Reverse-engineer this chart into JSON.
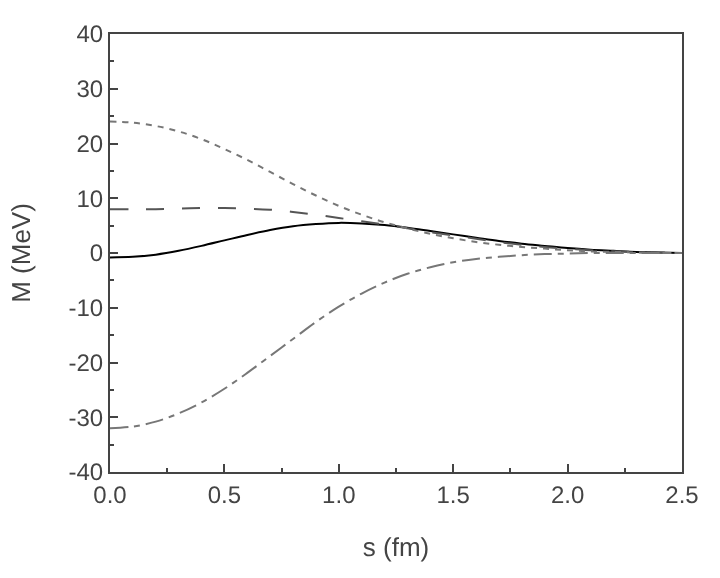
{
  "chart_data": {
    "type": "line",
    "xlabel": "s (fm)",
    "ylabel": "M (MeV)",
    "xlim": [
      0,
      2.5
    ],
    "ylim": [
      -40,
      40
    ],
    "xticks": [
      {
        "value": 0,
        "label": "0.0"
      },
      {
        "value": 0.5,
        "label": "0.5"
      },
      {
        "value": 1,
        "label": "1.0"
      },
      {
        "value": 1.5,
        "label": "1.5"
      },
      {
        "value": 2,
        "label": "2.0"
      },
      {
        "value": 2.5,
        "label": "2.5"
      }
    ],
    "yticks": [
      -40,
      -30,
      -20,
      -10,
      0,
      10,
      20,
      30,
      40
    ],
    "legend": false,
    "marker": "none",
    "x": [
      0,
      0.1,
      0.2,
      0.3,
      0.4,
      0.5,
      0.6,
      0.7,
      0.8,
      0.9,
      1.0,
      1.1,
      1.2,
      1.3,
      1.4,
      1.5,
      1.6,
      1.7,
      1.8,
      1.9,
      2.0,
      2.1,
      2.2,
      2.3,
      2.4,
      2.5
    ],
    "series": [
      {
        "color": "#000000",
        "line_style": "solid",
        "values": [
          -0.8,
          -0.7,
          -0.3,
          0.4,
          1.3,
          2.3,
          3.3,
          4.2,
          4.9,
          5.3,
          5.5,
          5.4,
          5.1,
          4.6,
          4.0,
          3.4,
          2.8,
          2.2,
          1.7,
          1.3,
          0.9,
          0.6,
          0.4,
          0.2,
          0.1,
          0
        ]
      },
      {
        "color": "#555555",
        "line_style": "dashed",
        "values": [
          8,
          8,
          8,
          8.1,
          8.2,
          8.2,
          8.1,
          7.9,
          7.5,
          7.0,
          6.4,
          5.8,
          5.2,
          4.5,
          3.8,
          3.2,
          2.6,
          2.0,
          1.5,
          1.1,
          0.8,
          0.5,
          0.3,
          0.2,
          0.1,
          0
        ]
      },
      {
        "color": "#777777",
        "line_style": "dotted",
        "values": [
          24,
          23.8,
          23.2,
          22.2,
          20.8,
          19.0,
          17.0,
          14.8,
          12.6,
          10.5,
          8.6,
          7.0,
          5.6,
          4.5,
          3.5,
          2.7,
          2.0,
          1.5,
          1.1,
          0.8,
          0.5,
          0.3,
          0.2,
          0.1,
          0,
          0
        ]
      },
      {
        "color": "#777777",
        "line_style": "dashdot",
        "values": [
          -32,
          -31.7,
          -30.8,
          -29.3,
          -27.3,
          -24.8,
          -21.9,
          -18.8,
          -15.7,
          -12.6,
          -9.8,
          -7.4,
          -5.4,
          -3.8,
          -2.6,
          -1.7,
          -1.1,
          -0.7,
          -0.4,
          -0.2,
          -0.1,
          0,
          0,
          0,
          0,
          0
        ]
      }
    ]
  }
}
